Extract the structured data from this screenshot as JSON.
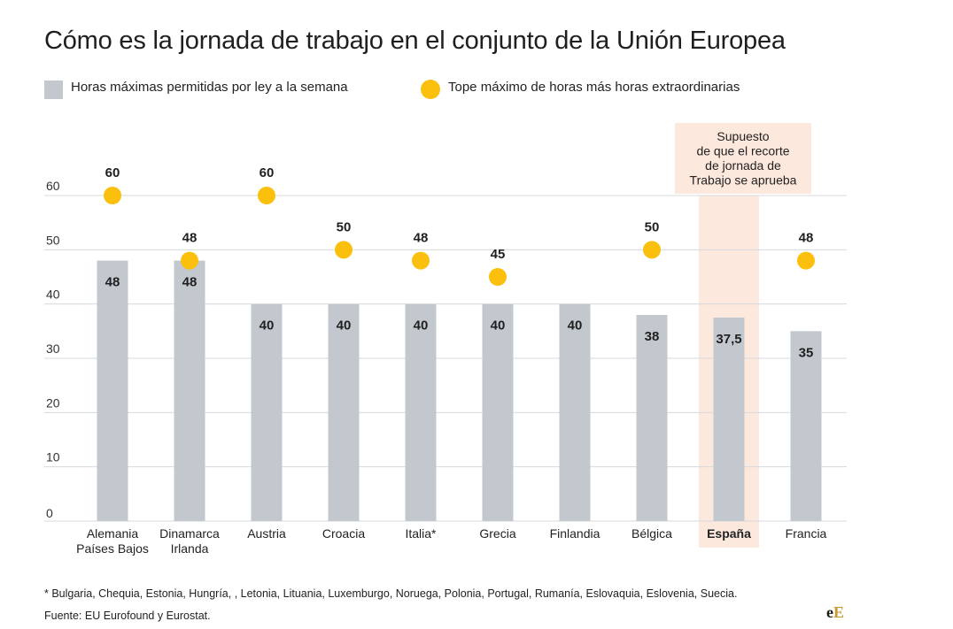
{
  "title": "Cómo es la jornada de trabajo en el conjunto de la Unión Europea",
  "legend": {
    "bar_label": "Horas máximas permitidas por ley a la semana",
    "dot_label": "Tope máximo de horas más horas extraordinarias"
  },
  "chart_data": {
    "type": "bar",
    "ylim": [
      0,
      60
    ],
    "yticks": [
      0,
      10,
      20,
      30,
      40,
      50,
      60
    ],
    "categories": [
      [
        "Alemania",
        "Países Bajos"
      ],
      [
        "Dinamarca",
        "Irlanda"
      ],
      [
        "Austria"
      ],
      [
        "Croacia"
      ],
      [
        "Italia*"
      ],
      [
        "Grecia"
      ],
      [
        "Finlandia"
      ],
      [
        "Bélgica"
      ],
      [
        "España"
      ],
      [
        "Francia"
      ]
    ],
    "series": [
      {
        "name": "Horas máximas permitidas por ley a la semana",
        "values": [
          48,
          48,
          40,
          40,
          40,
          40,
          40,
          38,
          37.5,
          35
        ],
        "labels": [
          "48",
          "48",
          "40",
          "40",
          "40",
          "40",
          "40",
          "38",
          "37,5",
          "35"
        ]
      },
      {
        "name": "Tope máximo de horas más horas extraordinarias",
        "values": [
          60,
          48,
          60,
          50,
          48,
          45,
          null,
          50,
          null,
          48
        ],
        "labels": [
          "60",
          "48",
          "60",
          "50",
          "48",
          "45",
          null,
          "50",
          null,
          "48"
        ]
      }
    ],
    "highlight": {
      "category": "España",
      "annotation": [
        "Supuesto",
        "de que el recorte",
        "de jornada de",
        "Trabajo se aprueba"
      ]
    }
  },
  "colors": {
    "bar": "#c3c8ce",
    "dot": "#fbbf0e",
    "highlight": "#fde8de",
    "grid": "#d6d9dd",
    "brand_e": "#1a1a1a",
    "brand_E": "#c9982e"
  },
  "footnotes": {
    "countries": "* Bulgaria, Chequia, Estonia, Hungría, , Letonia, Lituania, Luxemburgo, Noruega, Polonia, Portugal, Rumanía, Eslovaquia, Eslovenia, Suecia.",
    "source": "Fuente: EU Eurofound y Eurostat."
  },
  "brand": {
    "e": "e",
    "E": "E"
  }
}
